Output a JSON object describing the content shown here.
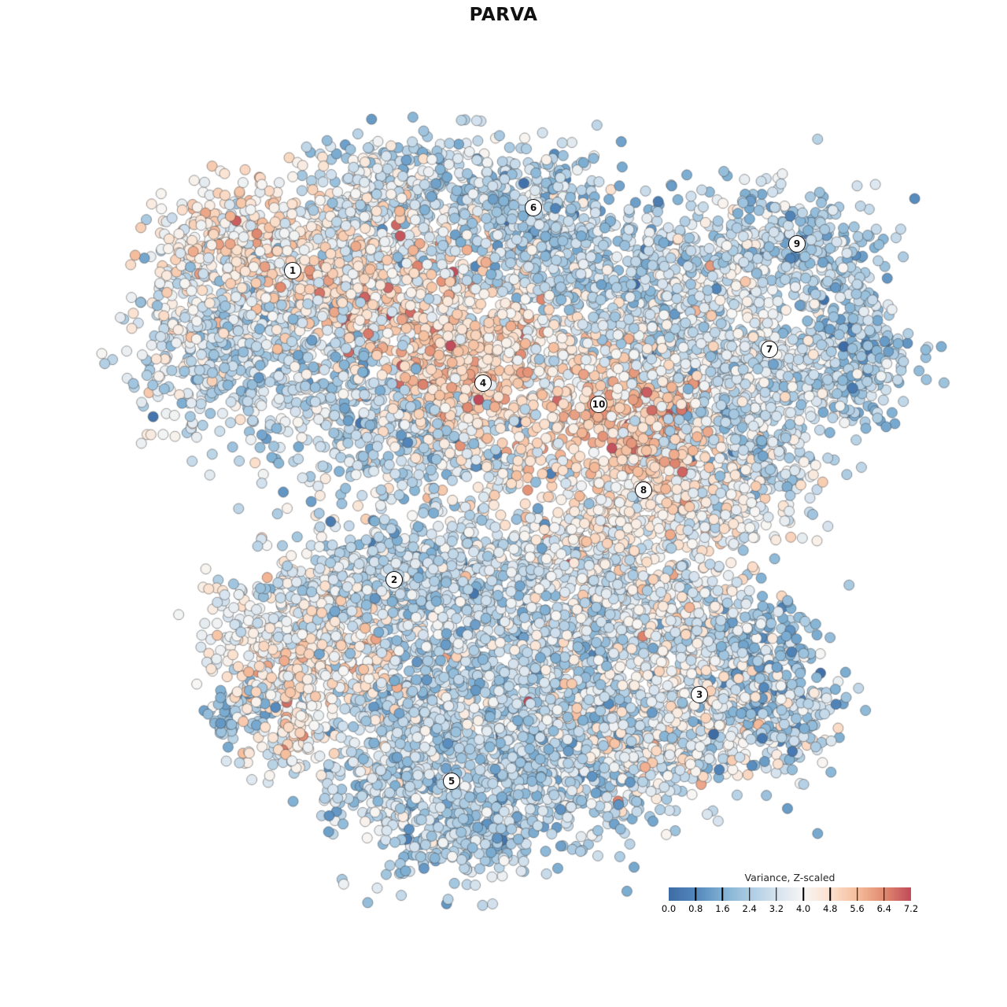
{
  "chart_data": {
    "type": "scatter",
    "title": "PARVA",
    "subtitle": "",
    "axes": {
      "visible": false,
      "x_range": [
        0,
        1280
      ],
      "y_range": [
        0,
        1280
      ]
    },
    "legend": {
      "title": "Variance, Z-scaled",
      "position": "bottom-right",
      "vmin": 0.0,
      "vmax": 7.2,
      "tick_values": [
        0.0,
        0.8,
        1.6,
        2.4,
        3.2,
        4.0,
        4.8,
        5.6,
        6.4,
        7.2
      ],
      "tick_labels": [
        "0.0",
        "0.8",
        "1.6",
        "2.4",
        "3.2",
        "4.0",
        "4.8",
        "5.6",
        "6.4",
        "7.2"
      ]
    },
    "color_scale": {
      "name": "RdBu_r (trimmed)",
      "stops": [
        [
          0.0,
          "#3e6ca6"
        ],
        [
          0.8,
          "#5287bb"
        ],
        [
          1.6,
          "#7fb0d3"
        ],
        [
          2.4,
          "#abcbe2"
        ],
        [
          3.2,
          "#d4e2ee"
        ],
        [
          4.0,
          "#f7f6f4"
        ],
        [
          4.8,
          "#fbe0cd"
        ],
        [
          5.6,
          "#f5bd9c"
        ],
        [
          6.4,
          "#e18a70"
        ],
        [
          7.2,
          "#c04a5a"
        ]
      ]
    },
    "point_style": {
      "radius": 6.5,
      "stroke": "rgba(60,60,60,0.5)",
      "stroke_width": 1
    },
    "cluster_labels": [
      {
        "id": "1",
        "x": 372,
        "y": 344
      },
      {
        "id": "2",
        "x": 501,
        "y": 737
      },
      {
        "id": "3",
        "x": 889,
        "y": 883
      },
      {
        "id": "4",
        "x": 614,
        "y": 487
      },
      {
        "id": "5",
        "x": 574,
        "y": 993
      },
      {
        "id": "6",
        "x": 678,
        "y": 264
      },
      {
        "id": "7",
        "x": 978,
        "y": 444
      },
      {
        "id": "8",
        "x": 818,
        "y": 623
      },
      {
        "id": "9",
        "x": 1013,
        "y": 310
      },
      {
        "id": "10",
        "x": 761,
        "y": 514
      }
    ],
    "blob_format": [
      "x_center",
      "y_center",
      "x_sd",
      "y_sd",
      "n_points",
      "value_mean",
      "value_sd"
    ],
    "blobs": [
      [
        560,
        235,
        80,
        38,
        300,
        2.8,
        0.9
      ],
      [
        665,
        270,
        55,
        40,
        220,
        2.3,
        0.8
      ],
      [
        470,
        270,
        60,
        35,
        190,
        3.6,
        0.9
      ],
      [
        300,
        305,
        55,
        38,
        190,
        4.9,
        0.7
      ],
      [
        245,
        360,
        40,
        45,
        130,
        3.9,
        0.9
      ],
      [
        380,
        340,
        70,
        45,
        290,
        3.9,
        1.0
      ],
      [
        460,
        390,
        60,
        40,
        230,
        4.9,
        1.0
      ],
      [
        330,
        430,
        70,
        50,
        260,
        2.9,
        0.8
      ],
      [
        250,
        470,
        45,
        55,
        140,
        3.3,
        0.9
      ],
      [
        420,
        500,
        70,
        55,
        280,
        2.7,
        0.8
      ],
      [
        520,
        560,
        55,
        40,
        190,
        2.7,
        0.9
      ],
      [
        560,
        460,
        45,
        40,
        170,
        5.4,
        0.8
      ],
      [
        610,
        500,
        60,
        50,
        290,
        4.9,
        0.55
      ],
      [
        650,
        430,
        50,
        35,
        130,
        4.6,
        0.8
      ],
      [
        540,
        350,
        60,
        40,
        200,
        4.1,
        1.2
      ],
      [
        700,
        350,
        55,
        45,
        190,
        3.0,
        0.9
      ],
      [
        790,
        330,
        60,
        50,
        220,
        2.6,
        0.9
      ],
      [
        860,
        390,
        50,
        40,
        160,
        3.0,
        0.9
      ],
      [
        920,
        330,
        45,
        35,
        130,
        3.5,
        0.8
      ],
      [
        1000,
        310,
        60,
        42,
        250,
        2.4,
        0.7
      ],
      [
        1075,
        380,
        30,
        50,
        110,
        2.4,
        0.8
      ],
      [
        1100,
        460,
        40,
        40,
        140,
        2.2,
        0.8
      ],
      [
        1035,
        490,
        45,
        30,
        130,
        3.0,
        0.8
      ],
      [
        960,
        450,
        60,
        30,
        180,
        3.4,
        0.6
      ],
      [
        900,
        480,
        50,
        35,
        160,
        3.4,
        0.8
      ],
      [
        830,
        430,
        45,
        40,
        140,
        3.2,
        1.0
      ],
      [
        770,
        530,
        45,
        42,
        210,
        5.3,
        0.6
      ],
      [
        845,
        545,
        30,
        45,
        140,
        5.6,
        0.7
      ],
      [
        890,
        560,
        45,
        35,
        120,
        3.7,
        1.0
      ],
      [
        950,
        560,
        45,
        40,
        130,
        2.8,
        0.9
      ],
      [
        730,
        470,
        40,
        30,
        80,
        3.8,
        0.8
      ],
      [
        620,
        580,
        50,
        25,
        100,
        3.2,
        1.0
      ],
      [
        845,
        630,
        55,
        35,
        200,
        4.3,
        0.8
      ],
      [
        920,
        650,
        50,
        35,
        140,
        3.9,
        0.8
      ],
      [
        960,
        600,
        40,
        35,
        110,
        2.9,
        0.9
      ],
      [
        780,
        660,
        45,
        30,
        110,
        4.4,
        0.7
      ],
      [
        730,
        690,
        45,
        35,
        140,
        4.0,
        0.9
      ],
      [
        560,
        640,
        90,
        40,
        35,
        3.8,
        0.9
      ],
      [
        650,
        720,
        70,
        40,
        220,
        3.0,
        0.9
      ],
      [
        560,
        750,
        60,
        40,
        210,
        2.9,
        0.8
      ],
      [
        480,
        735,
        55,
        35,
        210,
        2.6,
        0.8
      ],
      [
        400,
        760,
        60,
        35,
        190,
        3.4,
        0.8
      ],
      [
        345,
        800,
        45,
        35,
        140,
        3.9,
        0.8
      ],
      [
        420,
        830,
        60,
        35,
        190,
        4.8,
        0.7
      ],
      [
        355,
        870,
        45,
        30,
        110,
        4.2,
        0.8
      ],
      [
        310,
        905,
        25,
        22,
        60,
        2.2,
        0.7
      ],
      [
        365,
        940,
        30,
        28,
        80,
        3.9,
        0.9
      ],
      [
        620,
        830,
        90,
        60,
        460,
        2.7,
        0.8
      ],
      [
        750,
        790,
        60,
        45,
        250,
        3.4,
        1.0
      ],
      [
        820,
        760,
        50,
        35,
        180,
        3.6,
        1.0
      ],
      [
        880,
        800,
        60,
        40,
        210,
        3.1,
        0.9
      ],
      [
        890,
        880,
        70,
        45,
        290,
        4.1,
        0.8
      ],
      [
        970,
        850,
        50,
        50,
        210,
        1.9,
        0.7
      ],
      [
        1000,
        910,
        40,
        40,
        140,
        2.7,
        0.9
      ],
      [
        870,
        950,
        60,
        35,
        180,
        3.3,
        1.0
      ],
      [
        760,
        880,
        50,
        40,
        200,
        2.9,
        0.9
      ],
      [
        700,
        950,
        70,
        45,
        250,
        2.8,
        0.8
      ],
      [
        600,
        920,
        70,
        45,
        270,
        2.6,
        0.8
      ],
      [
        520,
        900,
        50,
        40,
        180,
        3.0,
        0.9
      ],
      [
        630,
        1020,
        90,
        45,
        380,
        2.4,
        0.7
      ],
      [
        580,
        1070,
        55,
        25,
        130,
        2.6,
        0.7
      ],
      [
        500,
        1000,
        45,
        40,
        160,
        2.8,
        0.8
      ],
      [
        780,
        1000,
        40,
        30,
        70,
        2.8,
        0.9
      ],
      [
        790,
        965,
        30,
        25,
        55,
        4.0,
        0.8
      ]
    ],
    "outlier_points": [
      [
        672,
        892,
        7.2
      ],
      [
        700,
        602,
        0.6
      ],
      [
        723,
        602,
        2.0
      ],
      [
        455,
        643,
        4.6
      ],
      [
        836,
        269,
        2.4
      ]
    ]
  }
}
